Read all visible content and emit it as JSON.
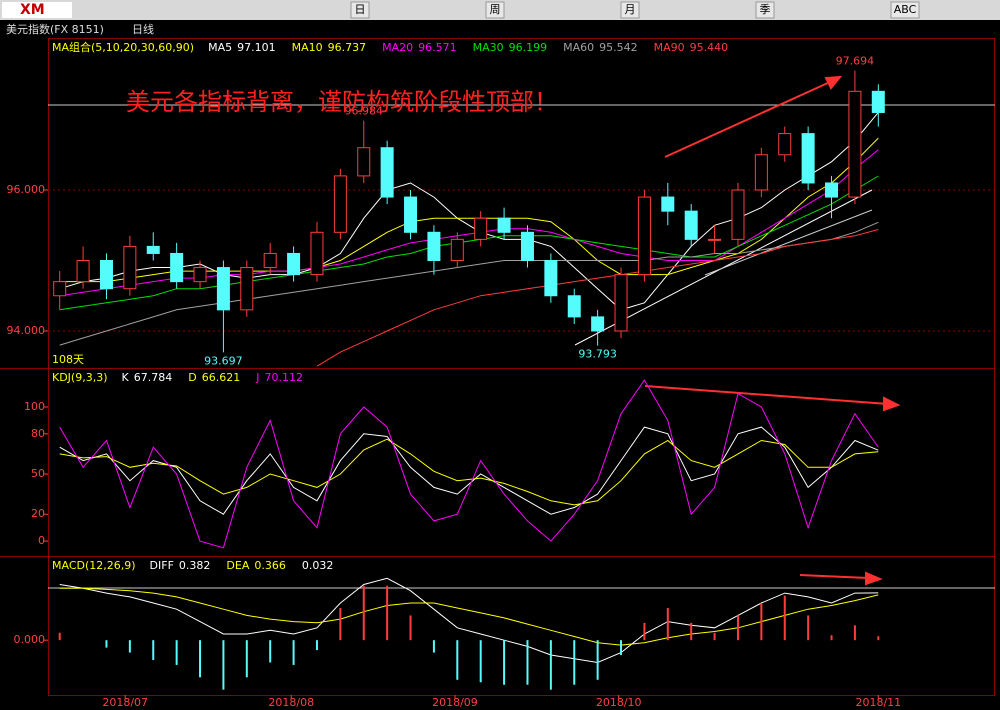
{
  "window": {
    "logo": "XM",
    "symbol": "美元指数(FX 8151)",
    "period": "日线",
    "toolbar": [
      "日",
      "周",
      "月",
      "季",
      "ABC"
    ]
  },
  "chart_data": [
    {
      "type": "candlestick",
      "legend_title": "MA组合(5,10,20,30,60,90)",
      "annotation": "美元各指标背离，谨防构筑阶段性顶部！",
      "note": "108天",
      "up_color": "#ff3c3c",
      "down_color": "#54fcfc",
      "ylim": [
        93.475,
        98.128
      ],
      "yticks": [
        {
          "value": 94,
          "label": "94.000"
        },
        {
          "value": 96,
          "label": "96.000"
        }
      ],
      "grid": true,
      "open": [
        94.5,
        94.7,
        95.0,
        94.6,
        95.2,
        95.1,
        94.7,
        94.9,
        94.3,
        94.9,
        95.1,
        94.8,
        95.4,
        96.2,
        96.6,
        95.9,
        95.4,
        95.0,
        95.3,
        95.6,
        95.4,
        95.0,
        94.5,
        94.2,
        94.0,
        94.8,
        95.9,
        95.7,
        95.3,
        95.3,
        96.0,
        96.5,
        96.8,
        96.1,
        95.9,
        97.4
      ],
      "high": [
        94.85,
        95.2,
        95.1,
        95.35,
        95.4,
        95.25,
        95.0,
        95.0,
        95.0,
        95.25,
        95.2,
        95.55,
        96.3,
        96.984,
        96.7,
        96.0,
        95.5,
        95.4,
        95.7,
        95.75,
        95.5,
        95.1,
        94.6,
        94.3,
        94.9,
        96.0,
        96.1,
        95.8,
        95.5,
        96.1,
        96.6,
        96.9,
        96.9,
        96.2,
        97.694,
        97.5
      ],
      "low": [
        94.3,
        94.6,
        94.45,
        94.5,
        95.0,
        94.6,
        94.6,
        93.697,
        94.2,
        94.8,
        94.7,
        94.7,
        95.3,
        96.1,
        95.8,
        95.3,
        94.8,
        94.9,
        95.2,
        95.3,
        94.9,
        94.4,
        94.1,
        93.793,
        93.9,
        94.7,
        95.5,
        95.2,
        95.1,
        95.2,
        95.9,
        96.4,
        96.0,
        95.6,
        95.8,
        96.9
      ],
      "close": [
        94.7,
        95.0,
        94.6,
        95.2,
        95.1,
        94.7,
        94.9,
        94.3,
        94.9,
        95.1,
        94.8,
        95.4,
        96.2,
        96.6,
        95.9,
        95.4,
        95.0,
        95.3,
        95.6,
        95.4,
        95.0,
        94.5,
        94.2,
        94.0,
        94.8,
        95.9,
        95.7,
        95.3,
        95.3,
        96.0,
        96.5,
        96.8,
        96.1,
        95.9,
        97.4,
        97.1
      ],
      "series": [
        {
          "name": "MA5",
          "color": "#ffffff",
          "value_labels": {
            "35": "97.101"
          },
          "values": [
            94.6,
            94.7,
            94.75,
            94.85,
            94.9,
            94.9,
            94.95,
            94.8,
            94.75,
            94.8,
            94.8,
            94.9,
            95.1,
            95.6,
            96.0,
            96.1,
            95.9,
            95.6,
            95.4,
            95.3,
            95.3,
            95.2,
            94.9,
            94.6,
            94.3,
            94.4,
            94.8,
            95.2,
            95.5,
            95.6,
            95.75,
            96.0,
            96.2,
            96.4,
            96.7,
            97.101
          ]
        },
        {
          "name": "MA10",
          "color": "#ffff00",
          "value_labels": {
            "35": "96.737"
          },
          "values": [
            94.7,
            94.7,
            94.7,
            94.75,
            94.8,
            94.85,
            94.85,
            94.85,
            94.85,
            94.85,
            94.85,
            94.9,
            95.0,
            95.2,
            95.4,
            95.55,
            95.6,
            95.6,
            95.6,
            95.6,
            95.6,
            95.55,
            95.3,
            95.0,
            94.8,
            94.8,
            94.8,
            94.9,
            95.0,
            95.1,
            95.3,
            95.6,
            95.9,
            96.1,
            96.4,
            96.737
          ]
        },
        {
          "name": "MA20",
          "color": "#ff00ff",
          "value_labels": {
            "35": "96.571"
          },
          "values": [
            94.5,
            94.55,
            94.6,
            94.65,
            94.7,
            94.75,
            94.75,
            94.8,
            94.8,
            94.85,
            94.85,
            94.9,
            94.95,
            95.05,
            95.15,
            95.25,
            95.3,
            95.35,
            95.4,
            95.45,
            95.45,
            95.4,
            95.3,
            95.2,
            95.1,
            95.05,
            95.0,
            95.0,
            95.0,
            95.2,
            95.4,
            95.6,
            95.8,
            96.0,
            96.3,
            96.571
          ]
        },
        {
          "name": "MA30",
          "color": "#00e000",
          "value_labels": {
            "35": "96.199"
          },
          "values": [
            94.3,
            94.35,
            94.4,
            94.45,
            94.5,
            94.6,
            94.6,
            94.65,
            94.7,
            94.75,
            94.8,
            94.85,
            94.9,
            94.95,
            95.05,
            95.1,
            95.2,
            95.25,
            95.3,
            95.35,
            95.35,
            95.35,
            95.3,
            95.25,
            95.2,
            95.15,
            95.1,
            95.05,
            95.05,
            95.2,
            95.35,
            95.5,
            95.65,
            95.8,
            96.0,
            96.199
          ]
        },
        {
          "name": "MA60",
          "color": "#a0a0a0",
          "value_labels": {
            "35": "95.542"
          },
          "values": [
            93.8,
            93.9,
            94.0,
            94.1,
            94.2,
            94.3,
            94.35,
            94.4,
            94.45,
            94.5,
            94.55,
            94.6,
            94.65,
            94.7,
            94.75,
            94.8,
            94.85,
            94.9,
            94.95,
            95.0,
            95.0,
            95.0,
            95.0,
            95.0,
            95.0,
            95.0,
            95.05,
            95.05,
            95.1,
            95.1,
            95.15,
            95.2,
            95.25,
            95.3,
            95.4,
            95.542
          ]
        },
        {
          "name": "MA90",
          "color": "#ff3c3c",
          "value_labels": {
            "35": "95.440"
          },
          "values": [
            null,
            null,
            null,
            null,
            null,
            null,
            null,
            null,
            null,
            null,
            null,
            93.5,
            93.7,
            93.85,
            94.0,
            94.15,
            94.3,
            94.4,
            94.5,
            94.55,
            94.6,
            94.65,
            94.7,
            94.75,
            94.8,
            94.85,
            94.9,
            94.95,
            95.0,
            95.05,
            95.1,
            95.2,
            95.25,
            95.3,
            95.35,
            95.44
          ]
        }
      ]
    },
    {
      "type": "line",
      "legend_title": "KDJ(9,3,3)",
      "ylim": [
        -10.4,
        127.6
      ],
      "yticks": [
        0,
        20,
        50,
        80,
        100
      ],
      "series": [
        {
          "name": "K",
          "color": "#ffffff",
          "values": [
            70,
            60,
            65,
            45,
            60,
            55,
            30,
            20,
            45,
            65,
            40,
            30,
            60,
            80,
            78,
            55,
            40,
            35,
            50,
            40,
            30,
            20,
            25,
            35,
            60,
            85,
            80,
            45,
            50,
            80,
            85,
            70,
            40,
            55,
            75,
            67.784
          ]
        },
        {
          "name": "D",
          "color": "#ffff00",
          "values": [
            65,
            62,
            63,
            55,
            58,
            56,
            45,
            35,
            40,
            50,
            45,
            40,
            50,
            68,
            76,
            65,
            52,
            45,
            47,
            43,
            37,
            30,
            27,
            30,
            45,
            65,
            75,
            60,
            55,
            65,
            75,
            72,
            55,
            55,
            65,
            66.621
          ]
        },
        {
          "name": "J",
          "color": "#ff00ff",
          "values": [
            85,
            55,
            75,
            25,
            70,
            50,
            0,
            -5,
            55,
            90,
            30,
            10,
            80,
            100,
            85,
            35,
            15,
            20,
            60,
            35,
            15,
            0,
            20,
            45,
            95,
            120,
            90,
            20,
            40,
            110,
            100,
            65,
            10,
            60,
            95,
            70.112
          ]
        }
      ]
    },
    {
      "type": "macd",
      "legend_title": "MACD(12,26,9)",
      "ylim": [
        -0.443,
        0.664
      ],
      "yticks": [
        {
          "value": 0,
          "label": "0.000"
        }
      ],
      "xlim": [
        -0.5,
        35.5
      ],
      "xticks": [
        {
          "value": 2.8,
          "label": "2018/07"
        },
        {
          "value": 9.9,
          "label": "2018/08"
        },
        {
          "value": 16.9,
          "label": "2018/09"
        },
        {
          "value": 23.9,
          "label": "2018/10"
        },
        {
          "value": 35,
          "label": "2018/11"
        }
      ],
      "series": [
        {
          "name": "DIFF",
          "color": "#ffffff",
          "values": [
            0.45,
            0.42,
            0.38,
            0.35,
            0.3,
            0.25,
            0.15,
            0.05,
            0.05,
            0.08,
            0.05,
            0.1,
            0.3,
            0.45,
            0.5,
            0.4,
            0.25,
            0.1,
            0.05,
            0.0,
            -0.05,
            -0.12,
            -0.15,
            -0.18,
            -0.1,
            0.05,
            0.15,
            0.12,
            0.1,
            0.2,
            0.3,
            0.38,
            0.35,
            0.3,
            0.38,
            0.382
          ]
        },
        {
          "name": "DEA",
          "color": "#ffff00",
          "values": [
            0.42,
            0.42,
            0.41,
            0.4,
            0.38,
            0.35,
            0.3,
            0.25,
            0.2,
            0.17,
            0.15,
            0.14,
            0.17,
            0.23,
            0.28,
            0.3,
            0.3,
            0.26,
            0.22,
            0.18,
            0.13,
            0.08,
            0.03,
            -0.02,
            -0.04,
            -0.02,
            0.02,
            0.05,
            0.07,
            0.1,
            0.15,
            0.2,
            0.25,
            0.28,
            0.32,
            0.366
          ]
        },
        {
          "up_color": "#ff3c3c",
          "down_color": "#54fcfc",
          "values": [
            0.06,
            0,
            -0.06,
            -0.1,
            -0.16,
            -0.2,
            -0.3,
            -0.4,
            -0.3,
            -0.18,
            -0.2,
            -0.08,
            0.26,
            0.44,
            0.44,
            0.2,
            -0.1,
            -0.32,
            -0.34,
            -0.36,
            -0.36,
            -0.4,
            -0.36,
            -0.32,
            -0.12,
            0.14,
            0.26,
            0.14,
            0.06,
            0.2,
            0.3,
            0.36,
            0.2,
            0.04,
            0.12,
            0.032
          ]
        }
      ]
    }
  ]
}
